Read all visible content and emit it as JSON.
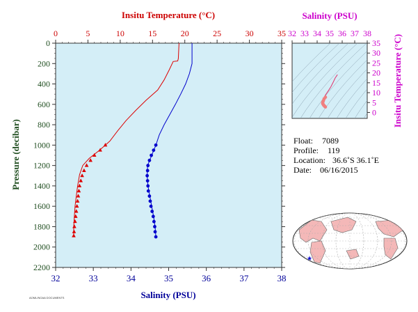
{
  "chart_data": [
    {
      "type": "line",
      "title": "",
      "x_top_label": "Insitu Temperature (°C)",
      "x_bottom_label": "Salinity (PSU)",
      "ylabel": "Pressure (decibar)",
      "temperature_axis": {
        "range": [
          0,
          35
        ],
        "ticks": [
          "0",
          "5",
          "10",
          "15",
          "20",
          "25",
          "30",
          "35"
        ]
      },
      "salinity_axis": {
        "range": [
          32,
          38
        ],
        "ticks": [
          "32",
          "33",
          "34",
          "35",
          "36",
          "37",
          "38"
        ]
      },
      "pressure_axis": {
        "range": [
          0,
          2200
        ],
        "inverted": true,
        "ticks": [
          "0",
          "200",
          "400",
          "600",
          "800",
          "1000",
          "1200",
          "1400",
          "1600",
          "1800",
          "2000",
          "2200"
        ]
      },
      "series": [
        {
          "kind": "temperature",
          "color": "#dd0000",
          "line": [
            [
              19.1,
              0
            ],
            [
              19.0,
              150
            ],
            [
              18.9,
              175
            ],
            [
              18.2,
              180
            ],
            [
              17.6,
              260
            ],
            [
              16.8,
              360
            ],
            [
              15.8,
              460
            ],
            [
              14.0,
              560
            ],
            [
              12.4,
              660
            ],
            [
              10.9,
              760
            ],
            [
              9.6,
              860
            ],
            [
              8.4,
              960
            ],
            [
              7.7,
              1000
            ],
            [
              6.6,
              1060
            ],
            [
              5.2,
              1130
            ],
            [
              4.2,
              1200
            ],
            [
              3.7,
              1290
            ],
            [
              3.4,
              1400
            ],
            [
              3.2,
              1500
            ],
            [
              3.0,
              1600
            ],
            [
              2.9,
              1700
            ],
            [
              2.8,
              1800
            ],
            [
              2.8,
              1890
            ]
          ],
          "markers": [
            [
              7.7,
              1000
            ],
            [
              6.9,
              1050
            ],
            [
              6.0,
              1100
            ],
            [
              5.4,
              1150
            ],
            [
              4.8,
              1200
            ],
            [
              4.4,
              1250
            ],
            [
              4.1,
              1300
            ],
            [
              3.9,
              1350
            ],
            [
              3.7,
              1400
            ],
            [
              3.6,
              1450
            ],
            [
              3.5,
              1500
            ],
            [
              3.4,
              1550
            ],
            [
              3.3,
              1600
            ],
            [
              3.2,
              1650
            ],
            [
              3.1,
              1700
            ],
            [
              3.0,
              1750
            ],
            [
              2.9,
              1800
            ],
            [
              2.85,
              1850
            ],
            [
              2.8,
              1890
            ]
          ]
        },
        {
          "kind": "salinity",
          "color": "#0000cc",
          "line": [
            [
              35.62,
              0
            ],
            [
              35.62,
              200
            ],
            [
              35.55,
              300
            ],
            [
              35.45,
              400
            ],
            [
              35.32,
              500
            ],
            [
              35.18,
              600
            ],
            [
              35.03,
              700
            ],
            [
              34.88,
              800
            ],
            [
              34.75,
              900
            ],
            [
              34.66,
              1000
            ],
            [
              34.55,
              1100
            ],
            [
              34.44,
              1200
            ],
            [
              34.43,
              1300
            ],
            [
              34.45,
              1400
            ],
            [
              34.5,
              1500
            ],
            [
              34.55,
              1600
            ],
            [
              34.6,
              1700
            ],
            [
              34.64,
              1800
            ],
            [
              34.66,
              1900
            ]
          ],
          "markers": [
            [
              34.66,
              1000
            ],
            [
              34.6,
              1050
            ],
            [
              34.54,
              1100
            ],
            [
              34.49,
              1150
            ],
            [
              34.45,
              1200
            ],
            [
              34.44,
              1250
            ],
            [
              34.43,
              1300
            ],
            [
              34.44,
              1350
            ],
            [
              34.45,
              1400
            ],
            [
              34.46,
              1450
            ],
            [
              34.49,
              1500
            ],
            [
              34.51,
              1550
            ],
            [
              34.53,
              1600
            ],
            [
              34.56,
              1650
            ],
            [
              34.59,
              1700
            ],
            [
              34.61,
              1750
            ],
            [
              34.63,
              1800
            ],
            [
              34.64,
              1850
            ],
            [
              34.66,
              1900
            ]
          ]
        }
      ]
    },
    {
      "type": "scatter",
      "x_label": "Salinity (PSU)",
      "y_label": "Insitu Temperature (°C)",
      "x_axis": {
        "range": [
          32,
          38
        ],
        "ticks": [
          "32",
          "33",
          "34",
          "35",
          "36",
          "37",
          "38"
        ]
      },
      "y_axis": {
        "range": [
          -3,
          35
        ],
        "ticks": [
          "0",
          "5",
          "10",
          "15",
          "20",
          "25",
          "30",
          "35"
        ]
      },
      "ts_curve": [
        [
          34.66,
          2.8
        ],
        [
          34.6,
          3.2
        ],
        [
          34.5,
          3.8
        ],
        [
          34.44,
          4.6
        ],
        [
          34.47,
          6.5
        ],
        [
          34.66,
          8.8
        ],
        [
          34.9,
          11.0
        ],
        [
          35.1,
          13.0
        ],
        [
          35.3,
          15.5
        ],
        [
          35.45,
          17.5
        ],
        [
          35.62,
          19.1
        ]
      ],
      "ts_markers": [
        [
          34.66,
          2.8
        ],
        [
          34.62,
          3.0
        ],
        [
          34.58,
          3.3
        ],
        [
          34.53,
          3.6
        ],
        [
          34.49,
          4.0
        ],
        [
          34.45,
          4.4
        ],
        [
          34.44,
          4.8
        ],
        [
          34.46,
          5.4
        ],
        [
          34.5,
          6.0
        ],
        [
          34.56,
          6.9
        ],
        [
          34.66,
          7.7
        ]
      ]
    }
  ],
  "info": {
    "float_label": "Float:",
    "float_value": "7089",
    "profile_label": "Profile:",
    "profile_value": "119",
    "location_label": "Location:",
    "location_value": "36.6˚S  36.1˚E",
    "date_label": "Date:",
    "date_value": "06/16/2015"
  },
  "footer_code": "AOML/NOAA DOCUMENTS",
  "map": {
    "station_marker_color": "#0000cc"
  }
}
